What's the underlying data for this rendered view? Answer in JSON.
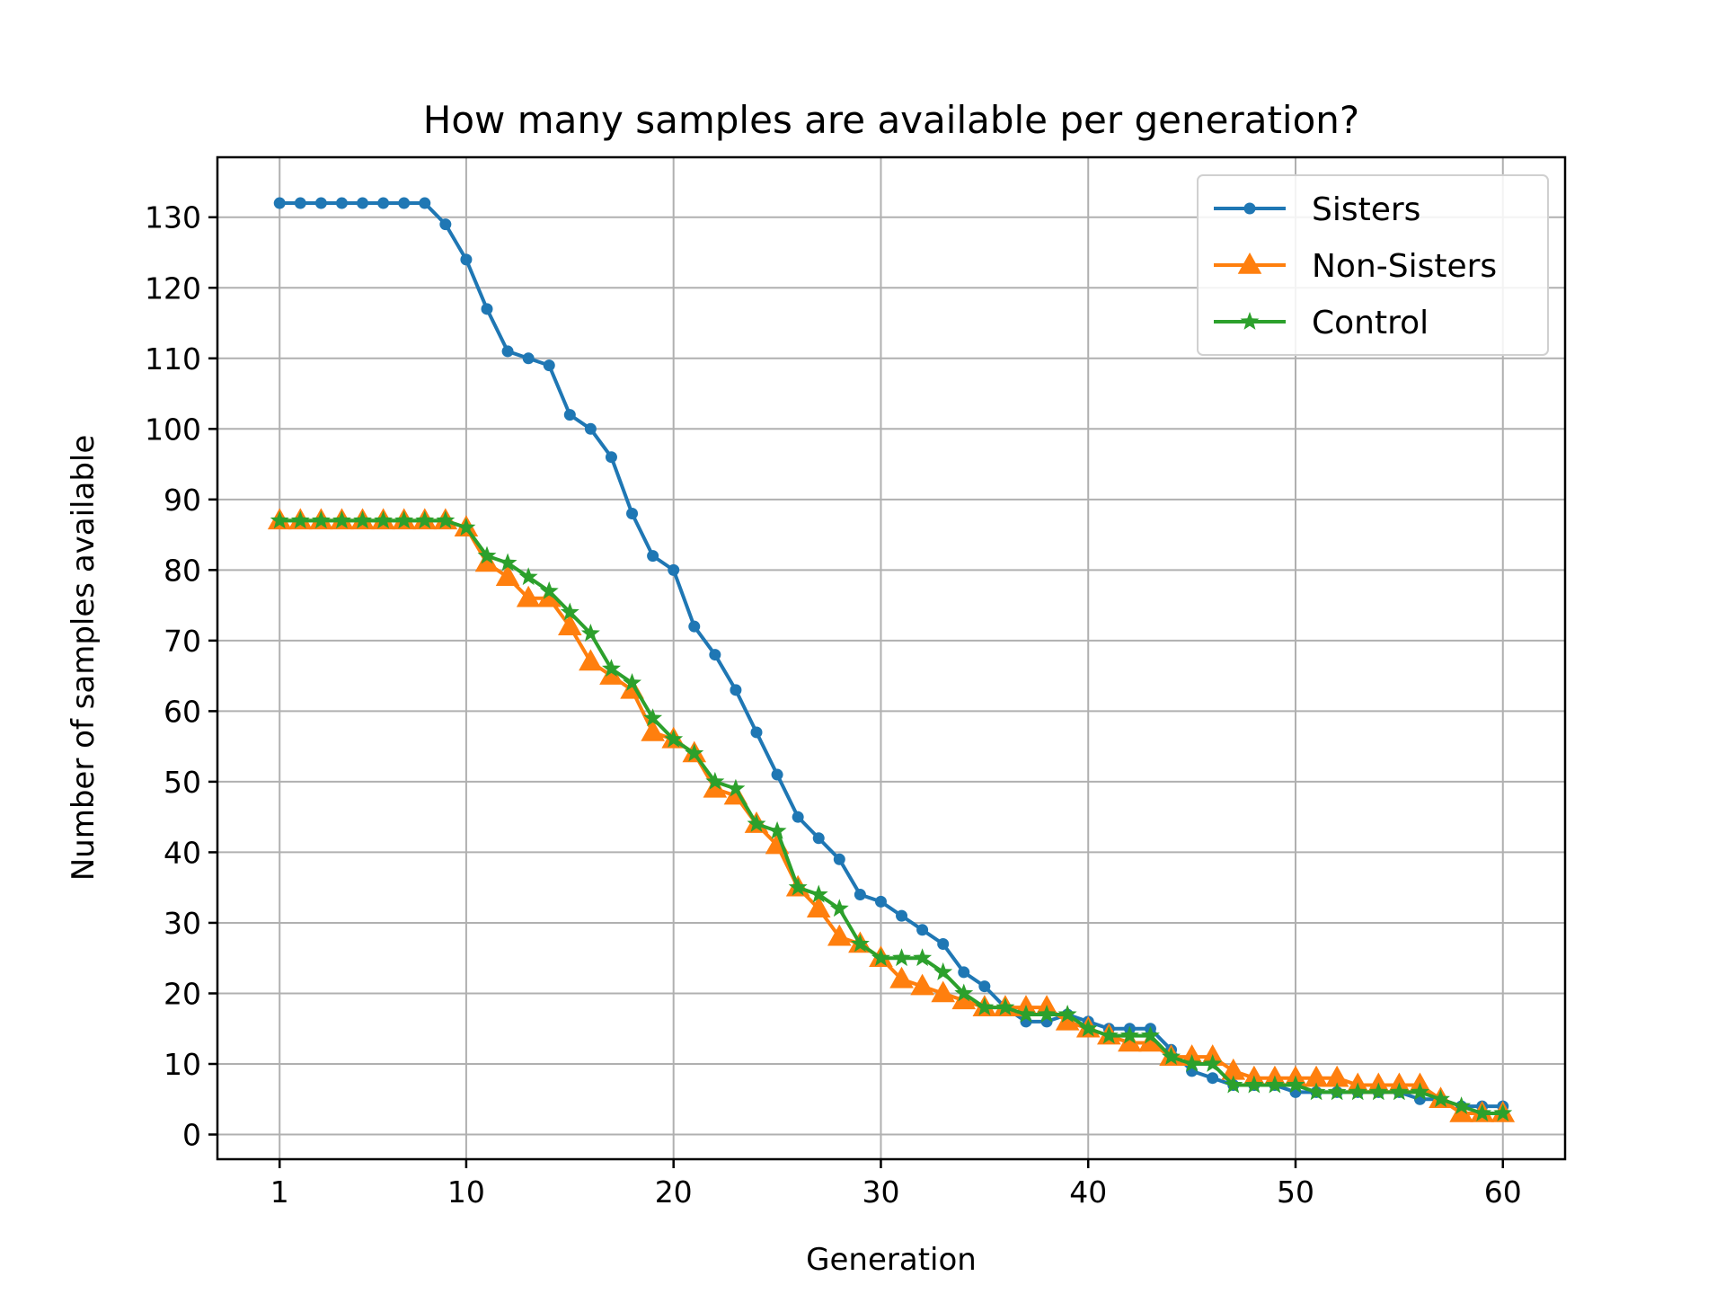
{
  "chart_data": {
    "type": "line",
    "title": "How many samples are available per generation?",
    "xlabel": "Generation",
    "ylabel": "Number of samples available",
    "xlim": [
      -2,
      63
    ],
    "ylim": [
      -3.5,
      138.5
    ],
    "xticks": [
      1,
      10,
      20,
      30,
      40,
      50,
      60
    ],
    "yticks": [
      0,
      10,
      20,
      30,
      40,
      50,
      60,
      70,
      80,
      90,
      100,
      110,
      120,
      130
    ],
    "grid": true,
    "legend_position": "top-right",
    "x": [
      1,
      2,
      3,
      4,
      5,
      6,
      7,
      8,
      9,
      10,
      11,
      12,
      13,
      14,
      15,
      16,
      17,
      18,
      19,
      20,
      21,
      22,
      23,
      24,
      25,
      26,
      27,
      28,
      29,
      30,
      31,
      32,
      33,
      34,
      35,
      36,
      37,
      38,
      39,
      40,
      41,
      42,
      43,
      44,
      45,
      46,
      47,
      48,
      49,
      50,
      51,
      52,
      53,
      54,
      55,
      56,
      57,
      58,
      59,
      60
    ],
    "series": [
      {
        "name": "Sisters",
        "color": "#1f77b4",
        "marker": "dot",
        "values": [
          132,
          132,
          132,
          132,
          132,
          132,
          132,
          132,
          129,
          124,
          117,
          111,
          110,
          109,
          102,
          100,
          96,
          88,
          82,
          80,
          72,
          68,
          63,
          57,
          51,
          45,
          42,
          39,
          34,
          33,
          31,
          29,
          27,
          23,
          21,
          18,
          16,
          16,
          17,
          16,
          15,
          15,
          15,
          12,
          9,
          8,
          7,
          7,
          7,
          6,
          6,
          6,
          6,
          6,
          6,
          5,
          5,
          4,
          4,
          4
        ]
      },
      {
        "name": "Non-Sisters",
        "color": "#ff7f0e",
        "marker": "triangle",
        "values": [
          87,
          87,
          87,
          87,
          87,
          87,
          87,
          87,
          87,
          86,
          81,
          79,
          76,
          76,
          72,
          67,
          65,
          63,
          57,
          56,
          54,
          49,
          48,
          44,
          41,
          35,
          32,
          28,
          27,
          25,
          22,
          21,
          20,
          19,
          18,
          18,
          18,
          18,
          16,
          15,
          14,
          13,
          13,
          11,
          11,
          11,
          9,
          8,
          8,
          8,
          8,
          8,
          7,
          7,
          7,
          7,
          5,
          3,
          3,
          3
        ]
      },
      {
        "name": "Control",
        "color": "#2ca02c",
        "marker": "star",
        "values": [
          87,
          87,
          87,
          87,
          87,
          87,
          87,
          87,
          87,
          86,
          82,
          81,
          79,
          77,
          74,
          71,
          66,
          64,
          59,
          56,
          54,
          50,
          49,
          44,
          43,
          35,
          34,
          32,
          27,
          25,
          25,
          25,
          23,
          20,
          18,
          18,
          17,
          17,
          17,
          15,
          14,
          14,
          14,
          11,
          10,
          10,
          7,
          7,
          7,
          7,
          6,
          6,
          6,
          6,
          6,
          6,
          5,
          4,
          3,
          3
        ]
      }
    ]
  }
}
